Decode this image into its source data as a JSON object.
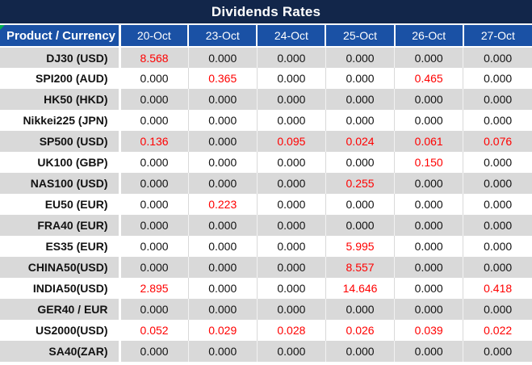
{
  "chart_data": {
    "type": "table",
    "title": "Dividends Rates",
    "row_header_label": "Product / Currency",
    "columns": [
      "20-Oct",
      "23-Oct",
      "24-Oct",
      "25-Oct",
      "26-Oct",
      "27-Oct"
    ],
    "rows": [
      {
        "product": "DJ30 (USD)",
        "values": [
          "8.568",
          "0.000",
          "0.000",
          "0.000",
          "0.000",
          "0.000"
        ]
      },
      {
        "product": "SPI200 (AUD)",
        "values": [
          "0.000",
          "0.365",
          "0.000",
          "0.000",
          "0.465",
          "0.000"
        ]
      },
      {
        "product": "HK50 (HKD)",
        "values": [
          "0.000",
          "0.000",
          "0.000",
          "0.000",
          "0.000",
          "0.000"
        ]
      },
      {
        "product": "Nikkei225 (JPN)",
        "values": [
          "0.000",
          "0.000",
          "0.000",
          "0.000",
          "0.000",
          "0.000"
        ]
      },
      {
        "product": "SP500 (USD)",
        "values": [
          "0.136",
          "0.000",
          "0.095",
          "0.024",
          "0.061",
          "0.076"
        ]
      },
      {
        "product": "UK100 (GBP)",
        "values": [
          "0.000",
          "0.000",
          "0.000",
          "0.000",
          "0.150",
          "0.000"
        ]
      },
      {
        "product": "NAS100 (USD)",
        "values": [
          "0.000",
          "0.000",
          "0.000",
          "0.255",
          "0.000",
          "0.000"
        ]
      },
      {
        "product": "EU50 (EUR)",
        "values": [
          "0.000",
          "0.223",
          "0.000",
          "0.000",
          "0.000",
          "0.000"
        ]
      },
      {
        "product": "FRA40 (EUR)",
        "values": [
          "0.000",
          "0.000",
          "0.000",
          "0.000",
          "0.000",
          "0.000"
        ]
      },
      {
        "product": "ES35 (EUR)",
        "values": [
          "0.000",
          "0.000",
          "0.000",
          "5.995",
          "0.000",
          "0.000"
        ]
      },
      {
        "product": "CHINA50(USD)",
        "values": [
          "0.000",
          "0.000",
          "0.000",
          "8.557",
          "0.000",
          "0.000"
        ]
      },
      {
        "product": "INDIA50(USD)",
        "values": [
          "2.895",
          "0.000",
          "0.000",
          "14.646",
          "0.000",
          "0.418"
        ]
      },
      {
        "product": "GER40 / EUR",
        "values": [
          "0.000",
          "0.000",
          "0.000",
          "0.000",
          "0.000",
          "0.000"
        ]
      },
      {
        "product": "US2000(USD)",
        "values": [
          "0.052",
          "0.029",
          "0.028",
          "0.026",
          "0.039",
          "0.022"
        ]
      },
      {
        "product": "SA40(ZAR)",
        "values": [
          "0.000",
          "0.000",
          "0.000",
          "0.000",
          "0.000",
          "0.000"
        ]
      }
    ]
  },
  "colors": {
    "title_bar_bg": "#12264A",
    "header_bg": "#1A51A5",
    "header_text": "#FFFFFF",
    "alt_row_bg": "#D9D9D9",
    "nonzero_value_color": "#FF0000",
    "error_flag_green": "#00B050"
  }
}
